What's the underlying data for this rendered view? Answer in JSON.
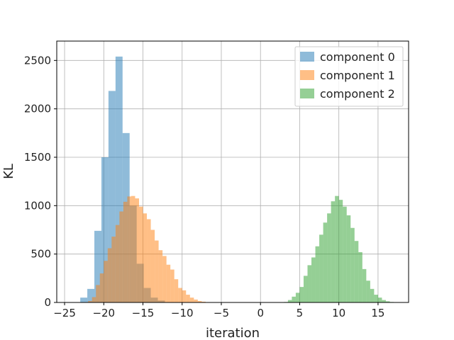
{
  "chart_data": {
    "type": "bar",
    "title": "",
    "xlabel": "iteration",
    "ylabel": "KL",
    "xlim": [
      -26.0,
      18.9
    ],
    "ylim": [
      0,
      2700
    ],
    "grid": true,
    "legend_position": "top-right",
    "xticks": [
      -25,
      -20,
      -15,
      -10,
      -5,
      0,
      5,
      10,
      15
    ],
    "xtick_labels": [
      "−25",
      "−20",
      "−15",
      "−10",
      "−5",
      "0",
      "5",
      "10",
      "15"
    ],
    "yticks": [
      0,
      500,
      1000,
      1500,
      2000,
      2500
    ],
    "ytick_labels": [
      "0",
      "500",
      "1000",
      "1500",
      "2000",
      "2500"
    ],
    "series": [
      {
        "name": "component 0",
        "color": "#1f77b4",
        "opacity": 0.5,
        "bin_edges": [
          -23.0,
          -22.1,
          -21.2,
          -20.3,
          -19.4,
          -18.5,
          -17.6,
          -16.7,
          -15.8,
          -14.9,
          -14.0,
          -13.1,
          -12.2
        ],
        "counts": [
          50,
          140,
          740,
          1500,
          2185,
          2540,
          1750,
          1000,
          400,
          150,
          50,
          20
        ]
      },
      {
        "name": "component 1",
        "color": "#ff7f0e",
        "opacity": 0.5,
        "bin_edges": [
          -22.0,
          -21.5,
          -21.0,
          -20.5,
          -20.0,
          -19.5,
          -19.0,
          -18.5,
          -18.0,
          -17.5,
          -17.0,
          -16.5,
          -16.0,
          -15.5,
          -15.0,
          -14.5,
          -14.0,
          -13.5,
          -13.0,
          -12.5,
          -12.0,
          -11.5,
          -11.0,
          -10.5,
          -10.0,
          -9.5,
          -9.0,
          -8.5,
          -8.0,
          -7.5,
          -7.0
        ],
        "counts": [
          15,
          55,
          180,
          300,
          430,
          560,
          680,
          800,
          940,
          1040,
          1095,
          1100,
          1075,
          990,
          920,
          860,
          750,
          640,
          540,
          480,
          390,
          340,
          240,
          150,
          125,
          80,
          50,
          30,
          15,
          8
        ]
      },
      {
        "name": "component 2",
        "color": "#2ca02c",
        "opacity": 0.5,
        "bin_edges": [
          3.0,
          3.5,
          4.0,
          4.5,
          5.0,
          5.5,
          6.0,
          6.5,
          7.0,
          7.5,
          8.0,
          8.5,
          9.0,
          9.5,
          10.0,
          10.5,
          11.0,
          11.5,
          12.0,
          12.5,
          13.0,
          13.5,
          14.0,
          14.5,
          15.0,
          15.5,
          16.0,
          16.5,
          17.0
        ],
        "counts": [
          5,
          25,
          60,
          100,
          160,
          275,
          385,
          465,
          580,
          700,
          825,
          920,
          1045,
          1100,
          1060,
          990,
          900,
          770,
          635,
          520,
          345,
          225,
          140,
          80,
          50,
          25,
          12,
          5
        ]
      }
    ]
  }
}
